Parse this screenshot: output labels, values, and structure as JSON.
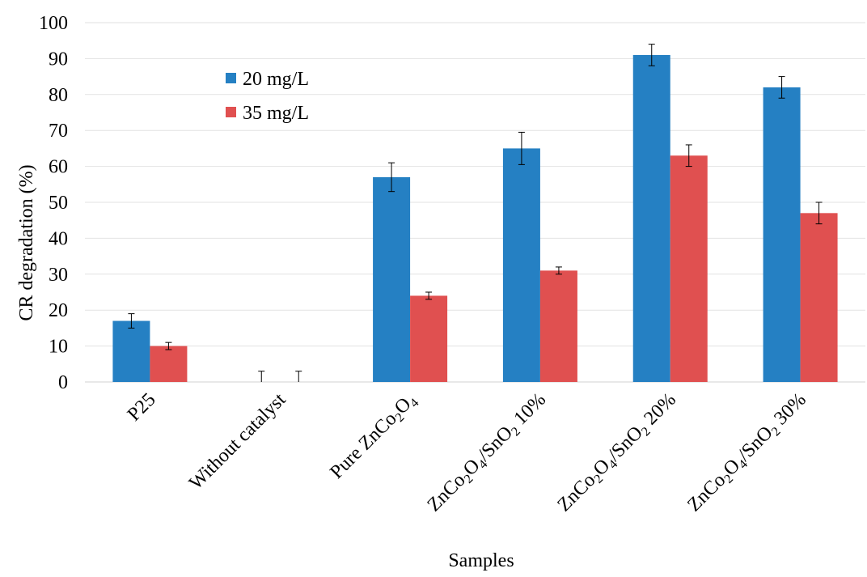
{
  "chart_data": {
    "type": "bar",
    "title": "",
    "xlabel": "Samples",
    "ylabel": "CR degradation (%)",
    "ylim": [
      0,
      100
    ],
    "yticks": [
      0,
      10,
      20,
      30,
      40,
      50,
      60,
      70,
      80,
      90,
      100
    ],
    "grid": true,
    "legend_position": "top-left",
    "categories": [
      {
        "label": "P25",
        "parts": [
          {
            "t": "P25"
          }
        ]
      },
      {
        "label": "Without catalyst",
        "parts": [
          {
            "t": "Without catalyst"
          }
        ]
      },
      {
        "label": "Pure ZnCo2O4",
        "parts": [
          {
            "t": "Pure ZnCo"
          },
          {
            "t": "2",
            "sub": true
          },
          {
            "t": "O"
          },
          {
            "t": "4",
            "sub": true
          }
        ]
      },
      {
        "label": "ZnCo2O4/SnO2 10%",
        "parts": [
          {
            "t": "ZnCo"
          },
          {
            "t": "2",
            "sub": true
          },
          {
            "t": "O"
          },
          {
            "t": "4",
            "sub": true
          },
          {
            "t": "/SnO"
          },
          {
            "t": "2",
            "sub": true
          },
          {
            "t": " 10%"
          }
        ]
      },
      {
        "label": "ZnCo2O4/SnO2 20%",
        "parts": [
          {
            "t": "ZnCo"
          },
          {
            "t": "2",
            "sub": true
          },
          {
            "t": "O"
          },
          {
            "t": "4",
            "sub": true
          },
          {
            "t": "/SnO"
          },
          {
            "t": "2",
            "sub": true
          },
          {
            "t": " 20%"
          }
        ]
      },
      {
        "label": "ZnCo2O4/SnO2 30%",
        "parts": [
          {
            "t": "ZnCo"
          },
          {
            "t": "2",
            "sub": true
          },
          {
            "t": "O"
          },
          {
            "t": "4",
            "sub": true
          },
          {
            "t": "/SnO"
          },
          {
            "t": "2",
            "sub": true
          },
          {
            "t": " 30%"
          }
        ]
      }
    ],
    "series": [
      {
        "name": "20 mg/L",
        "color": "#2580C3",
        "values": [
          17,
          0,
          57,
          65,
          91,
          82
        ],
        "errors": [
          2,
          3,
          4,
          4.5,
          3,
          3
        ]
      },
      {
        "name": "35 mg/L",
        "color": "#E05050",
        "values": [
          10,
          0,
          24,
          31,
          63,
          47
        ],
        "errors": [
          1,
          3,
          1,
          1,
          3,
          3
        ]
      }
    ]
  }
}
